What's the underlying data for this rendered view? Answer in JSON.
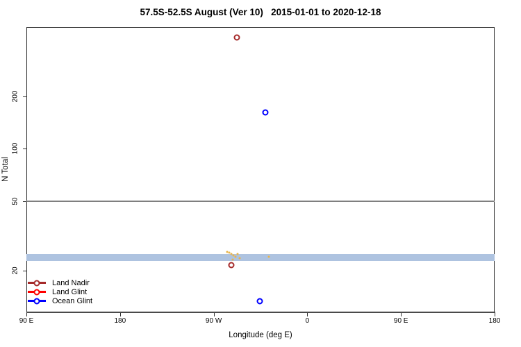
{
  "chart_data": {
    "type": "scatter",
    "title": "57.5S-52.5S August (Ver 10)   2015-01-01 to 2020-12-18",
    "xlabel": "Longitude (deg E)",
    "ylabel": "N Total",
    "x_axis": {
      "range": [
        90,
        540
      ],
      "ticks": [
        90,
        180,
        270,
        360,
        450,
        540
      ],
      "tick_labels": [
        "90 E",
        "180",
        "90 W",
        "0",
        "90 E",
        "180"
      ]
    },
    "y_axis": {
      "scale": "log",
      "range": [
        11.5,
        500
      ],
      "ticks": [
        20,
        50,
        100,
        200
      ],
      "tick_labels": [
        "20",
        "50",
        "100",
        "200"
      ]
    },
    "reference_line": {
      "n": 50,
      "color": "#7f7f7f"
    },
    "band": {
      "n_low": 22.7,
      "n_high": 24.9,
      "color": "#AEC3E0"
    },
    "series": [
      {
        "name": "Land Nadir",
        "color": "#A52A2A",
        "marker": "open-circle",
        "points": [
          {
            "lon_deg_e": 292,
            "n": 435
          },
          {
            "lon_deg_e": 287,
            "n": 21.5
          }
        ]
      },
      {
        "name": "Land Glint",
        "color": "#FF0000",
        "marker": "open-circle",
        "points": []
      },
      {
        "name": "Ocean Glint",
        "color": "#0000FF",
        "marker": "open-circle",
        "points": [
          {
            "lon_deg_e": 320,
            "n": 162
          },
          {
            "lon_deg_e": 314,
            "n": 13.3
          }
        ]
      },
      {
        "name": "unlabeled-orange-cluster",
        "color": "#E9B54C",
        "marker": "dot",
        "points": [
          {
            "lon_deg_e": 283,
            "n": 25.6
          },
          {
            "lon_deg_e": 285,
            "n": 25.3
          },
          {
            "lon_deg_e": 287,
            "n": 24.8
          },
          {
            "lon_deg_e": 288.5,
            "n": 23.2
          },
          {
            "lon_deg_e": 289,
            "n": 24.3
          },
          {
            "lon_deg_e": 291,
            "n": 24.0
          },
          {
            "lon_deg_e": 293,
            "n": 24.8
          },
          {
            "lon_deg_e": 295,
            "n": 23.5
          },
          {
            "lon_deg_e": 323,
            "n": 24.0
          }
        ]
      }
    ],
    "legend": {
      "position": "bottom-left",
      "entries": [
        {
          "label": "Land Nadir",
          "color": "#A52A2A"
        },
        {
          "label": "Land Glint",
          "color": "#FF0000"
        },
        {
          "label": "Ocean Glint",
          "color": "#0000FF"
        }
      ]
    }
  }
}
